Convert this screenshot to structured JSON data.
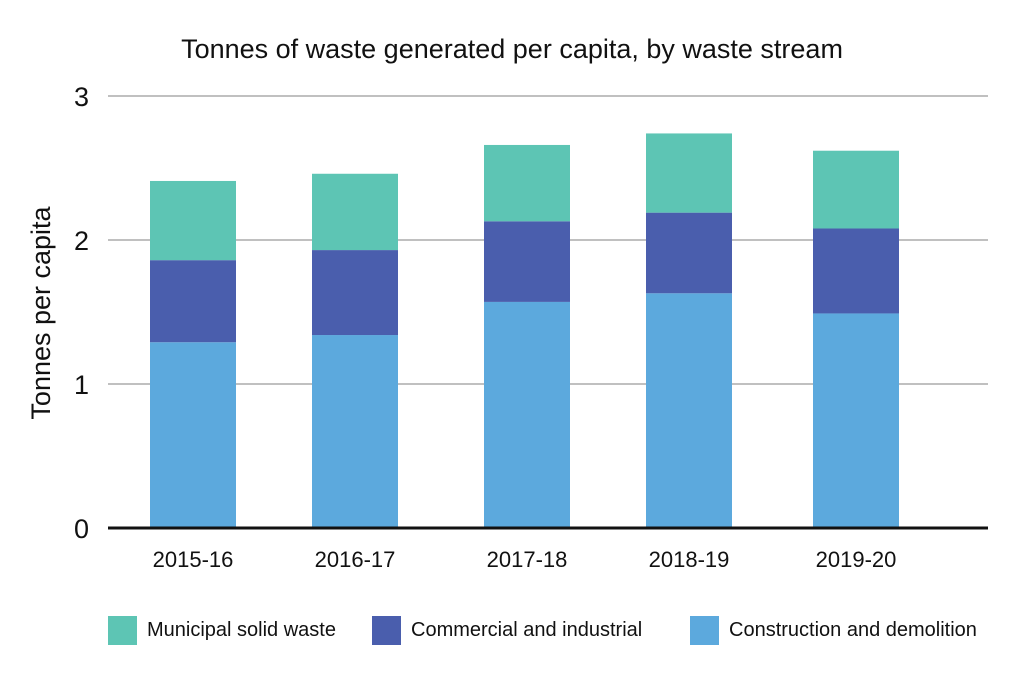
{
  "chart_data": {
    "type": "bar",
    "stacked": true,
    "title": "Tonnes of waste generated per capita, by waste stream",
    "xlabel": "",
    "ylabel": "Tonnes per capita",
    "ylim": [
      0,
      3
    ],
    "yticks": [
      "0",
      "1",
      "2",
      "3"
    ],
    "grid": true,
    "legend_position": "bottom",
    "categories": [
      "2015-16",
      "2016-17",
      "2017-18",
      "2018-19",
      "2019-20"
    ],
    "series": [
      {
        "name": "Construction and demolition",
        "color": "#5CA9DD",
        "values": [
          1.29,
          1.34,
          1.57,
          1.63,
          1.49
        ]
      },
      {
        "name": "Commercial and industrial",
        "color": "#4A5EAD",
        "values": [
          0.57,
          0.59,
          0.56,
          0.56,
          0.59
        ]
      },
      {
        "name": "Municipal solid waste",
        "color": "#5DC5B4",
        "values": [
          0.55,
          0.53,
          0.53,
          0.55,
          0.54
        ]
      }
    ],
    "legend_order": [
      "Municipal solid waste",
      "Commercial and industrial",
      "Construction and demolition"
    ]
  }
}
